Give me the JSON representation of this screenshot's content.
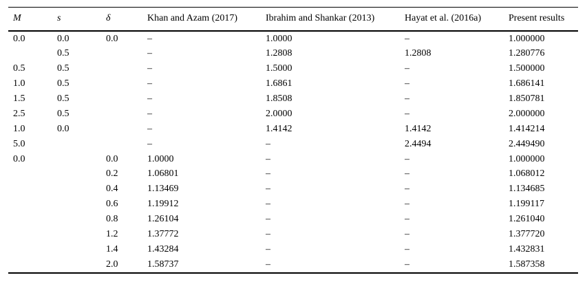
{
  "table": {
    "headers": [
      "M",
      "s",
      "δ",
      "Khan and Azam (2017)",
      "Ibrahim and Shankar (2013)",
      "Hayat et al. (2016a)",
      "Present results"
    ],
    "empty_marker": "–",
    "rows": [
      [
        "0.0",
        "0.0",
        "0.0",
        "–",
        "1.0000",
        "–",
        "1.000000"
      ],
      [
        "",
        "0.5",
        "",
        "–",
        "1.2808",
        "1.2808",
        "1.280776"
      ],
      [
        "0.5",
        "0.5",
        "",
        "–",
        "1.5000",
        "–",
        "1.500000"
      ],
      [
        "1.0",
        "0.5",
        "",
        "–",
        "1.6861",
        "–",
        "1.686141"
      ],
      [
        "1.5",
        "0.5",
        "",
        "–",
        "1.8508",
        "–",
        "1.850781"
      ],
      [
        "2.5",
        "0.5",
        "",
        "–",
        "2.0000",
        "–",
        "2.000000"
      ],
      [
        "1.0",
        "0.0",
        "",
        "–",
        "1.4142",
        "1.4142",
        "1.414214"
      ],
      [
        "5.0",
        "",
        "",
        "–",
        "–",
        "2.4494",
        "2.449490"
      ],
      [
        "0.0",
        "",
        "0.0",
        "1.0000",
        "–",
        "–",
        "1.000000"
      ],
      [
        "",
        "",
        "0.2",
        "1.06801",
        "–",
        "–",
        "1.068012"
      ],
      [
        "",
        "",
        "0.4",
        "1.13469",
        "–",
        "–",
        "1.134685"
      ],
      [
        "",
        "",
        "0.6",
        "1.19912",
        "–",
        "–",
        "1.199117"
      ],
      [
        "",
        "",
        "0.8",
        "1.26104",
        "–",
        "–",
        "1.261040"
      ],
      [
        "",
        "",
        "1.2",
        "1.37772",
        "–",
        "–",
        "1.377720"
      ],
      [
        "",
        "",
        "1.4",
        "1.43284",
        "–",
        "–",
        "1.432831"
      ],
      [
        "",
        "",
        "2.0",
        "1.58737",
        "–",
        "–",
        "1.587358"
      ]
    ]
  },
  "colors": {
    "text": "#000000",
    "background": "#ffffff",
    "rule": "#000000"
  }
}
